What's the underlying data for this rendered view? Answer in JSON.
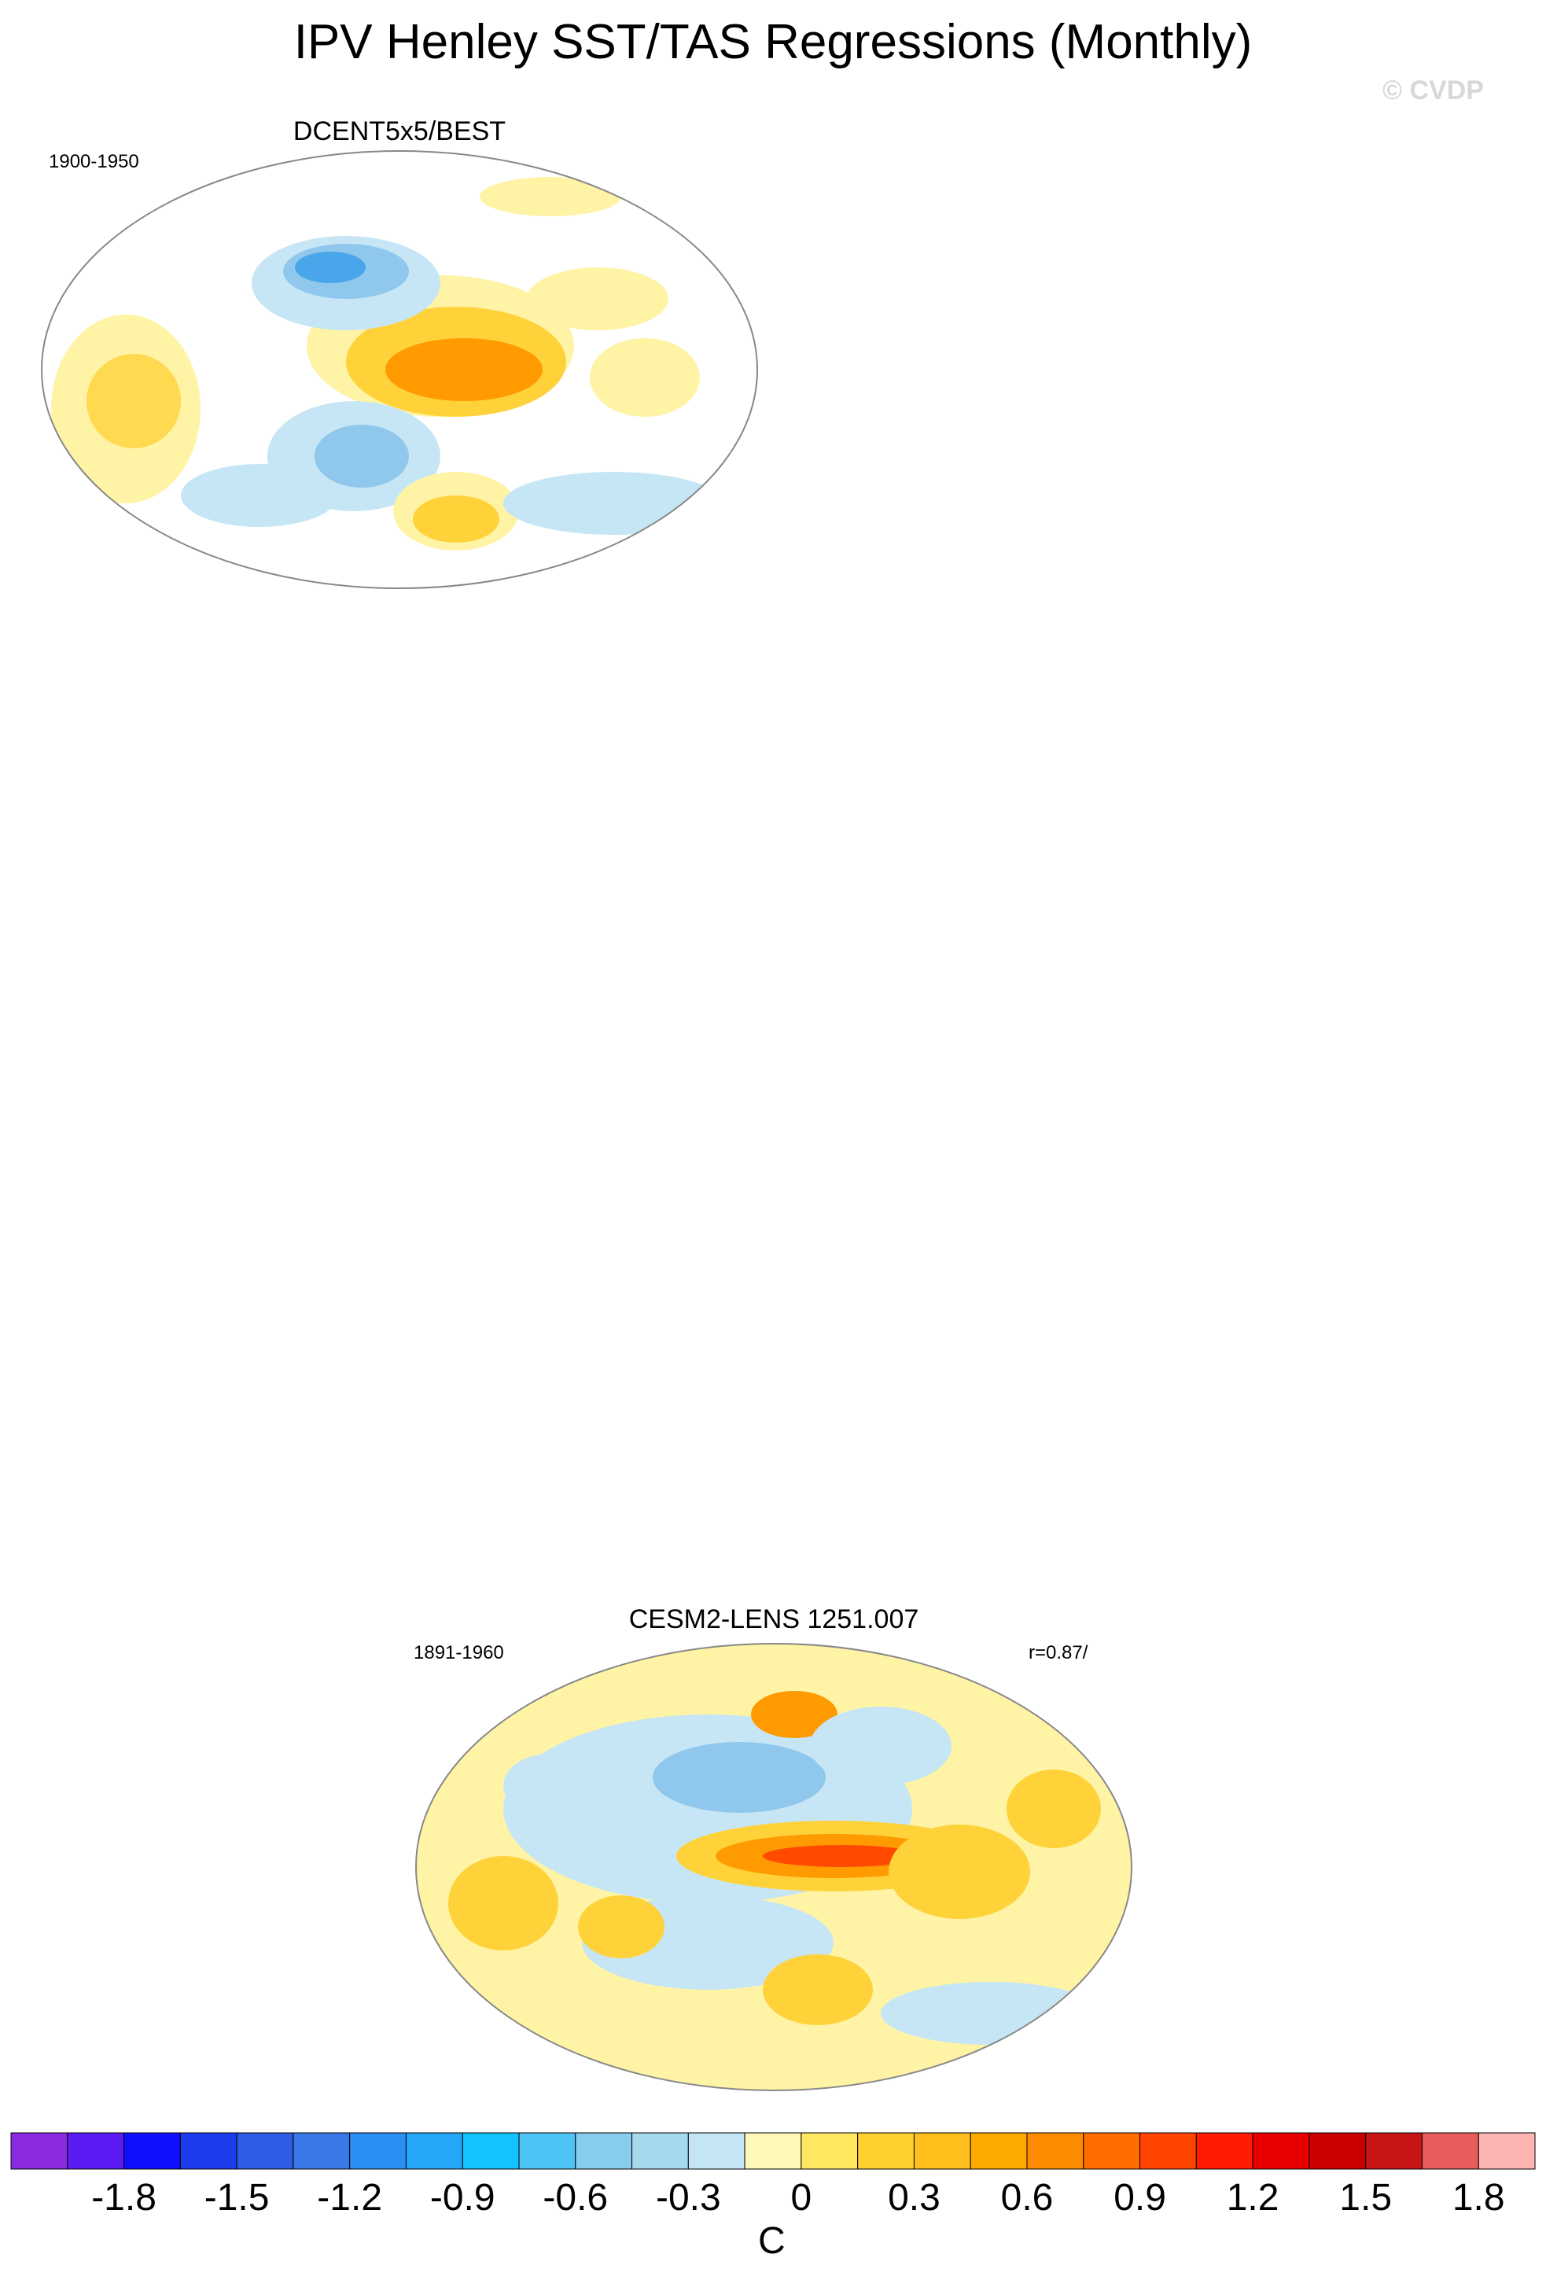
{
  "title": "IPV Henley SST/TAS Regressions (Monthly)",
  "copyright": "© CVDP",
  "panels": [
    {
      "title": "DCENT5x5/BEST",
      "period": "1900-1950",
      "stat": ""
    },
    {
      "title": "CESM2-LENS 1251.007",
      "period": "1891-1960",
      "stat": "r=0.87/"
    }
  ],
  "colorbar": {
    "units": "C",
    "tick_labels": [
      "-1.8",
      "-1.5",
      "-1.2",
      "-0.9",
      "-0.6",
      "-0.3",
      "0",
      "0.3",
      "0.6",
      "0.9",
      "1.2",
      "1.5",
      "1.8"
    ],
    "colors": [
      "#8a2be2",
      "#5a1cf2",
      "#1010ff",
      "#1c3cee",
      "#2f5ce4",
      "#3a78e8",
      "#2a90f4",
      "#22a8f6",
      "#11c4ff",
      "#4ec4f4",
      "#86cceb",
      "#a6d8ee",
      "#c4e6f4",
      "#fff8b8",
      "#ffe860",
      "#ffd02e",
      "#ffbf1a",
      "#ffaa00",
      "#ff8c00",
      "#ff6c00",
      "#ff4400",
      "#ff1c00",
      "#e80000",
      "#cc0000",
      "#c81414",
      "#e85c5c",
      "#ffb4b4"
    ]
  },
  "map_colors": {
    "warm_light": "#fff3a6",
    "warm_mid": "#ffd23a",
    "warm_strong": "#ff9a00",
    "warm_core": "#ff4a00",
    "cool_light": "#c6e6f5",
    "cool_mid": "#8fc8ec",
    "cool_strong": "#4aa6ea"
  }
}
